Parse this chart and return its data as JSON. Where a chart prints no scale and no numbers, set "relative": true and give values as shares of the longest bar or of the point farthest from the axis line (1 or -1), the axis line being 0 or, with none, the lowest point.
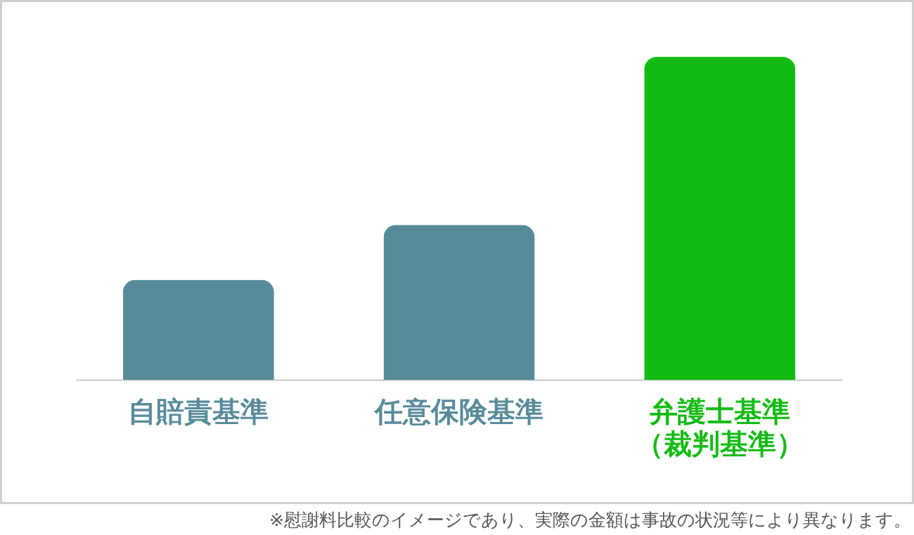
{
  "chart_data": {
    "type": "bar",
    "relative": true,
    "categories": [
      "自賠責基準",
      "任意保険基準",
      "弁護士基準（裁判基準）"
    ],
    "values": [
      0.31,
      0.48,
      1
    ],
    "colors": [
      "#588b9a",
      "#588b9a",
      "#12bb12"
    ],
    "annotations": [
      "※慰謝料比較のイメージであり、実際の金額は事故の状況等により異なります。"
    ]
  }
}
